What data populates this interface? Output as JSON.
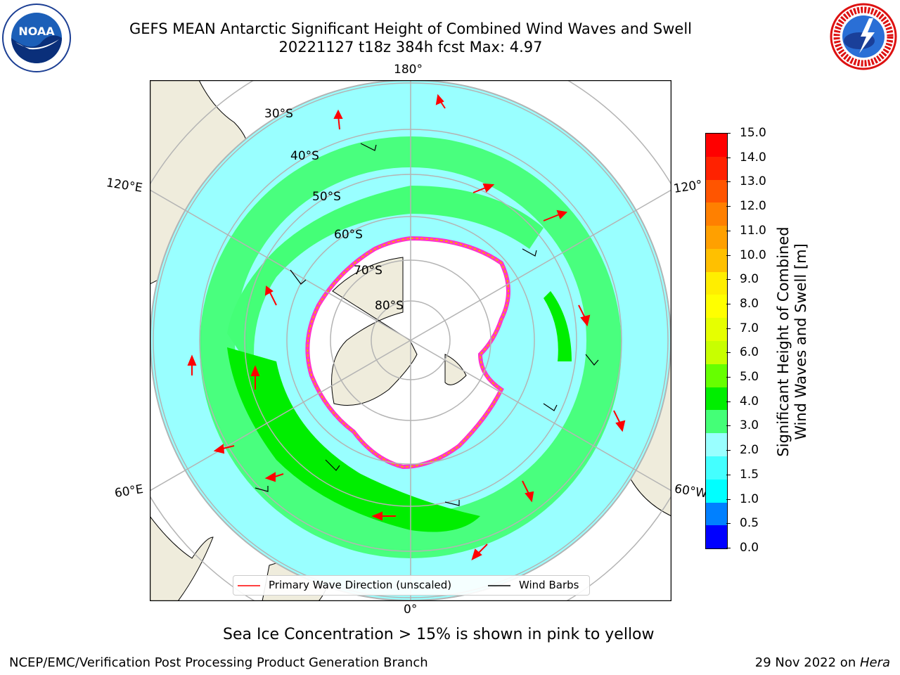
{
  "title": {
    "line1": "GEFS MEAN Antarctic Significant Height of Combined Wind Waves and Swell",
    "line2": "20221127 t18z 384h fcst   Max: 4.97"
  },
  "map": {
    "projection": "south-polar-stereographic",
    "longitude_labels": [
      "180°",
      "120°E",
      "120°",
      "60°E",
      "60°W",
      "0°"
    ],
    "latitude_labels": [
      "30°S",
      "40°S",
      "50°S",
      "60°S",
      "70°S",
      "80°S"
    ],
    "land_color": "#efecdc",
    "ocean_color": "#ffffff",
    "grid_color": "#b4b4b4"
  },
  "legend": {
    "wave_label": "Primary Wave Direction (unscaled)",
    "barb_label": "Wind Barbs",
    "wave_color": "#ff0000",
    "barb_color": "#000000"
  },
  "colorbar": {
    "label_line1": "Significant Height of Combined",
    "label_line2": "Wind Waves and Swell [m]",
    "ticks": [
      "15.0",
      "14.0",
      "13.0",
      "12.0",
      "11.0",
      "10.0",
      "9.0",
      "8.0",
      "7.0",
      "6.0",
      "5.0",
      "4.0",
      "3.0",
      "2.0",
      "1.5",
      "1.0",
      "0.5",
      "0.0"
    ],
    "colors_top_to_bottom": [
      "#ff0000",
      "#ff2200",
      "#ff5500",
      "#ff8000",
      "#ffa000",
      "#ffc000",
      "#ffee00",
      "#ffff00",
      "#e6ff00",
      "#c8ff00",
      "#66ff00",
      "#00ee00",
      "#44ff77",
      "#99ffff",
      "#44ffff",
      "#00ffff",
      "#0080ff",
      "#0000ff"
    ]
  },
  "note": "Sea Ice Concentration > 15% is shown in pink to yellow",
  "footer": {
    "left": "NCEP/EMC/Verification Post Processing Product Generation Branch",
    "date": "29 Nov 2022 on ",
    "machine": "Hera"
  },
  "logos": {
    "left_icon": "noaa-logo",
    "left_text": "NOAA",
    "right_icon": "nws-logo",
    "right_text": "NATIONAL WEATHER SERVICE"
  }
}
